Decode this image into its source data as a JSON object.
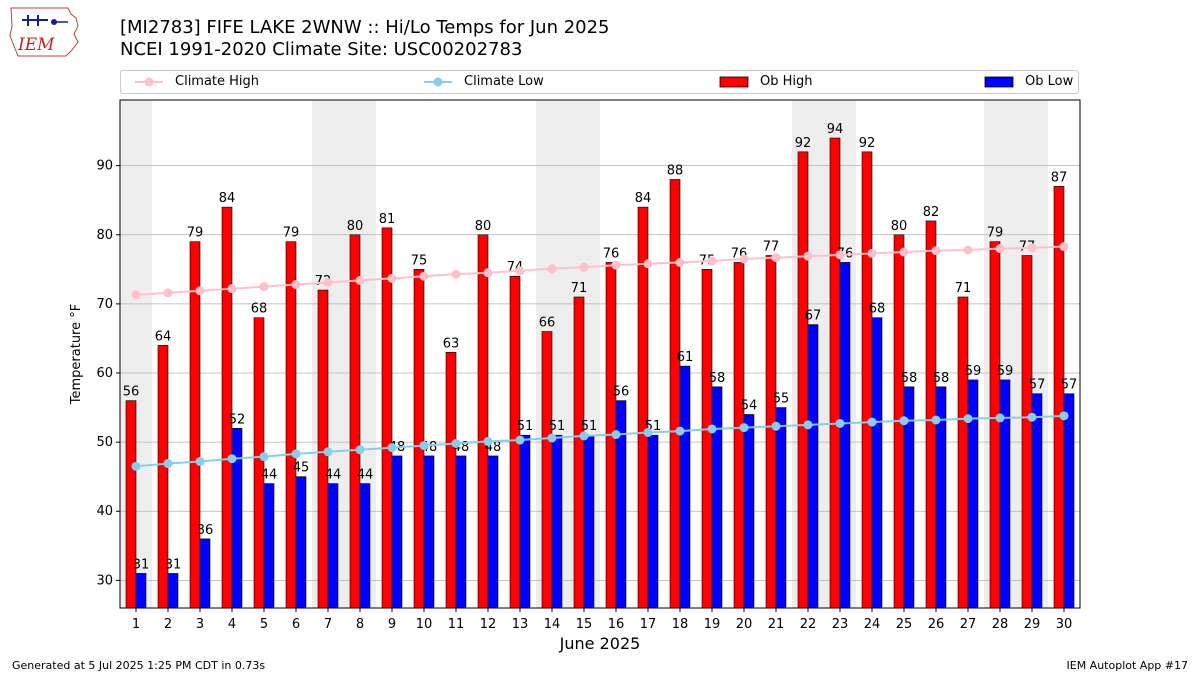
{
  "header": {
    "title_line1": "[MI2783] FIFE LAKE 2WNW :: Hi/Lo Temps for Jun 2025",
    "title_line2": "NCEI 1991-2020 Climate Site: USC00202783"
  },
  "logo": {
    "text": "IEM"
  },
  "footer": {
    "left": "Generated at 5 Jul 2025 1:25 PM CDT in 0.73s",
    "right": "IEM Autoplot App #17"
  },
  "colors": {
    "ob_high": "#ff0000",
    "ob_low": "#0000ff",
    "climate_high": "#ffc0cb",
    "climate_low": "#87ceeb",
    "weekend_shade": "#eeeeee",
    "grid": "#b0b0b0"
  },
  "legend": {
    "items": [
      {
        "label": "Climate High",
        "kind": "line",
        "color": "#ffc0cb"
      },
      {
        "label": "Climate Low",
        "kind": "line",
        "color": "#87ceeb"
      },
      {
        "label": "Ob High",
        "kind": "bar",
        "color": "#ff0000"
      },
      {
        "label": "Ob Low",
        "kind": "bar",
        "color": "#0000ff"
      }
    ]
  },
  "chart_data": {
    "type": "bar",
    "xlabel": "June 2025",
    "ylabel": "Temperature °F",
    "ylim": [
      26,
      99.5
    ],
    "yticks": [
      30,
      40,
      50,
      60,
      70,
      80,
      90
    ],
    "grid": "horizontal",
    "legend_position": "top",
    "categories": [
      "1",
      "2",
      "3",
      "4",
      "5",
      "6",
      "7",
      "8",
      "9",
      "10",
      "11",
      "12",
      "13",
      "14",
      "15",
      "16",
      "17",
      "18",
      "19",
      "20",
      "21",
      "22",
      "23",
      "24",
      "25",
      "26",
      "27",
      "28",
      "29",
      "30"
    ],
    "shaded_days": [
      1,
      7,
      8,
      14,
      15,
      22,
      23,
      28,
      29
    ],
    "series": [
      {
        "name": "Ob High",
        "kind": "bar",
        "values": [
          56,
          64,
          79,
          84,
          68,
          79,
          72,
          80,
          81,
          75,
          63,
          80,
          74,
          66,
          71,
          76,
          84,
          88,
          75,
          76,
          77,
          92,
          94,
          92,
          80,
          82,
          71,
          79,
          77,
          87
        ]
      },
      {
        "name": "Ob Low",
        "kind": "bar",
        "values": [
          31,
          31,
          36,
          52,
          44,
          45,
          44,
          44,
          48,
          48,
          48,
          48,
          51,
          51,
          51,
          56,
          51,
          61,
          58,
          54,
          55,
          67,
          76,
          68,
          58,
          58,
          59,
          59,
          57,
          57
        ]
      },
      {
        "name": "Climate High",
        "kind": "line",
        "values": [
          71.3,
          71.6,
          71.9,
          72.2,
          72.5,
          72.8,
          73.1,
          73.4,
          73.7,
          74.0,
          74.3,
          74.5,
          74.8,
          75.1,
          75.3,
          75.6,
          75.8,
          76.0,
          76.2,
          76.5,
          76.7,
          76.9,
          77.1,
          77.3,
          77.5,
          77.7,
          77.8,
          78.0,
          78.1,
          78.3
        ]
      },
      {
        "name": "Climate Low",
        "kind": "line",
        "values": [
          46.5,
          46.9,
          47.2,
          47.6,
          47.9,
          48.3,
          48.6,
          48.9,
          49.2,
          49.5,
          49.8,
          50.1,
          50.3,
          50.6,
          50.9,
          51.1,
          51.4,
          51.6,
          51.9,
          52.1,
          52.3,
          52.5,
          52.7,
          52.9,
          53.1,
          53.2,
          53.4,
          53.5,
          53.6,
          53.8
        ]
      }
    ]
  }
}
